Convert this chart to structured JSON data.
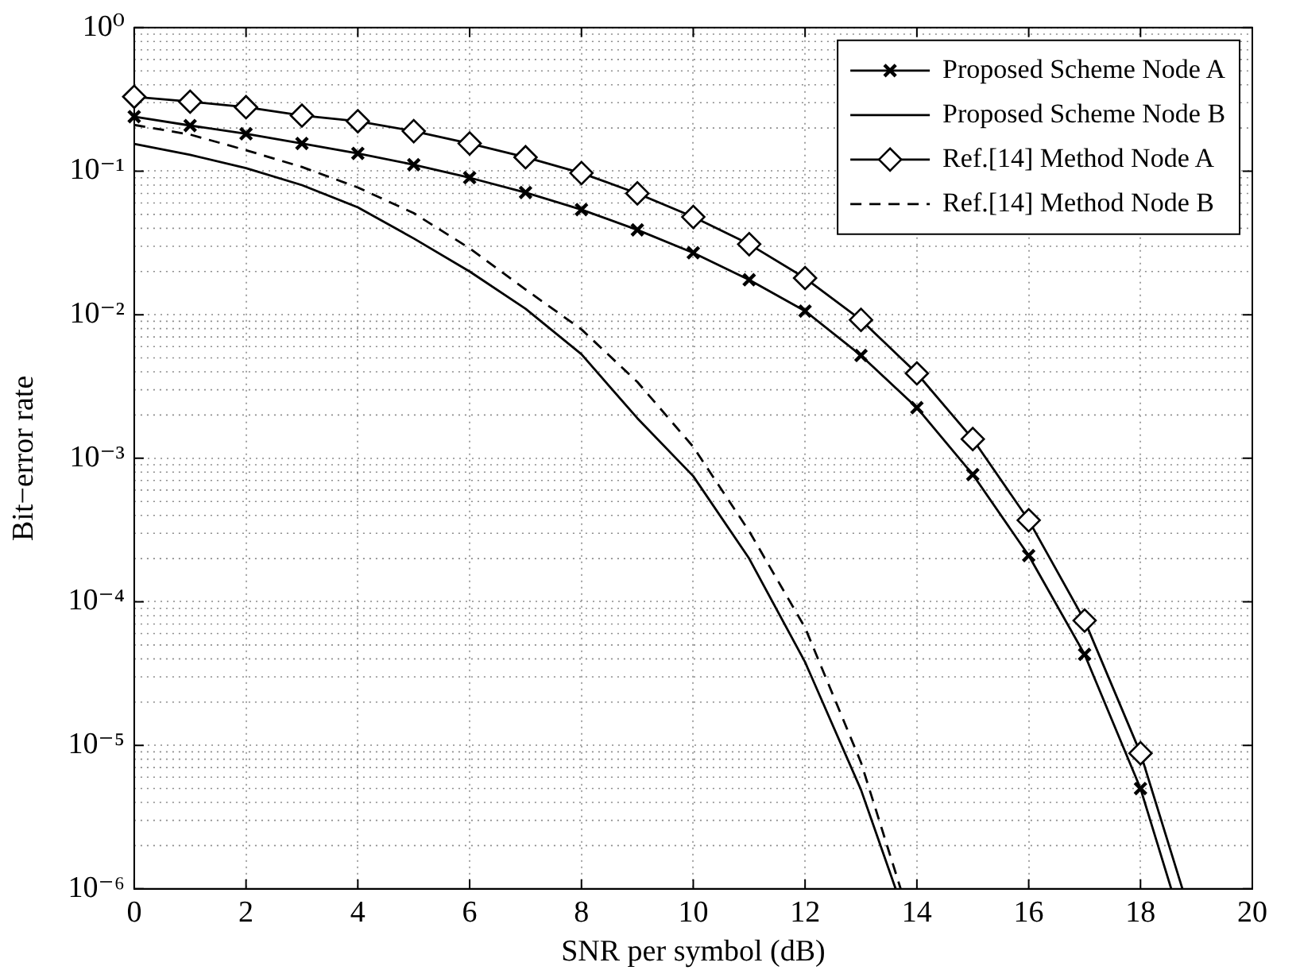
{
  "chart_data": {
    "type": "line",
    "xlabel": "SNR per symbol (dB)",
    "ylabel": "Bit−error rate",
    "log": "y",
    "xlim": [
      0,
      20
    ],
    "xticks": [
      0,
      2,
      4,
      6,
      8,
      10,
      12,
      14,
      16,
      18,
      20
    ],
    "ylim": [
      1e-06,
      1
    ],
    "yticks": [
      {
        "value": 1,
        "label": "10⁰"
      },
      {
        "value": 0.1,
        "label": "10⁻¹"
      },
      {
        "value": 0.01,
        "label": "10⁻²"
      },
      {
        "value": 0.001,
        "label": "10⁻³"
      },
      {
        "value": 0.0001,
        "label": "10⁻⁴"
      },
      {
        "value": 1e-05,
        "label": "10⁻⁵"
      },
      {
        "value": 1e-06,
        "label": "10⁻⁶"
      }
    ],
    "grid": true,
    "legend": "top right",
    "series": [
      {
        "name": "Proposed Scheme Node A",
        "color": "#000000",
        "marker": "cross",
        "line_style": "solid",
        "x": [
          0,
          1,
          2,
          3,
          4,
          5,
          6,
          7,
          8,
          9,
          10,
          11,
          12,
          13,
          14,
          15,
          16,
          17,
          18,
          18.55
        ],
        "values": [
          0.24,
          0.208,
          0.182,
          0.156,
          0.133,
          0.111,
          0.09,
          0.071,
          0.054,
          0.039,
          0.027,
          0.0175,
          0.0106,
          0.0052,
          0.00225,
          0.00077,
          0.00021,
          4.3e-05,
          5e-06,
          1e-06
        ]
      },
      {
        "name": "Proposed Scheme Node B",
        "color": "#000000",
        "marker": "none",
        "line_style": "solid",
        "x": [
          0,
          1,
          2,
          3,
          4,
          5,
          6,
          7,
          8,
          9,
          10,
          11,
          12,
          13,
          13.62
        ],
        "values": [
          0.155,
          0.13,
          0.105,
          0.08,
          0.056,
          0.034,
          0.02,
          0.011,
          0.0053,
          0.0019,
          0.00075,
          0.0002,
          3.8e-05,
          4.9e-06,
          1e-06
        ]
      },
      {
        "name": "Ref.[14] Method Node A",
        "color": "#000000",
        "marker": "diamond",
        "line_style": "solid",
        "x": [
          0,
          1,
          2,
          3,
          4,
          5,
          6,
          7,
          8,
          9,
          10,
          11,
          12,
          13,
          14,
          15,
          16,
          17,
          18,
          18.75
        ],
        "values": [
          0.33,
          0.305,
          0.279,
          0.244,
          0.223,
          0.19,
          0.156,
          0.125,
          0.097,
          0.07,
          0.048,
          0.031,
          0.018,
          0.0092,
          0.0039,
          0.00136,
          0.00037,
          7.4e-05,
          8.8e-06,
          1e-06
        ]
      },
      {
        "name": "Ref.[14] Method Node B",
        "color": "#000000",
        "marker": "none",
        "line_style": "dashed",
        "x": [
          0,
          1,
          2,
          3,
          4,
          5,
          6,
          7,
          8,
          9,
          10,
          11,
          12,
          13,
          13.71
        ],
        "values": [
          0.21,
          0.18,
          0.14,
          0.107,
          0.077,
          0.051,
          0.029,
          0.015,
          0.0079,
          0.0034,
          0.0012,
          0.00031,
          6.6e-05,
          7.6e-06,
          1e-06
        ]
      }
    ]
  }
}
